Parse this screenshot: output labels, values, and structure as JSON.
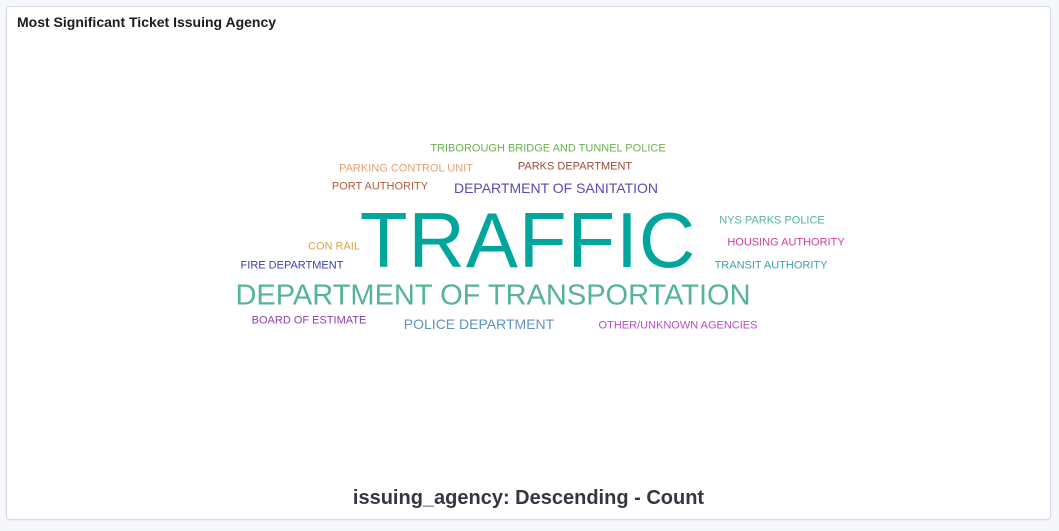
{
  "panel": {
    "title": "Most Significant Ticket Issuing Agency"
  },
  "chart_data": {
    "type": "wordcloud",
    "title": "Most Significant Ticket Issuing Agency",
    "xlabel": "issuing_agency: Descending - Count",
    "words": [
      {
        "text": "TRAFFIC",
        "weight": 100,
        "color": "#00a69b"
      },
      {
        "text": "DEPARTMENT OF TRANSPORTATION",
        "weight": 40,
        "color": "#54b399"
      },
      {
        "text": "DEPARTMENT OF SANITATION",
        "weight": 14,
        "color": "#5a4ab3"
      },
      {
        "text": "POLICE DEPARTMENT",
        "weight": 14,
        "color": "#6092c0"
      },
      {
        "text": "TRIBOROUGH BRIDGE AND TUNNEL POLICE",
        "weight": 10,
        "color": "#68b34e"
      },
      {
        "text": "PARKING CONTROL UNIT",
        "weight": 10,
        "color": "#e7a06e"
      },
      {
        "text": "PARKS DEPARTMENT",
        "weight": 10,
        "color": "#9c4a36"
      },
      {
        "text": "PORT AUTHORITY",
        "weight": 10,
        "color": "#b55838"
      },
      {
        "text": "NYS PARKS POLICE",
        "weight": 10,
        "color": "#54b399"
      },
      {
        "text": "HOUSING AUTHORITY",
        "weight": 10,
        "color": "#ca3f9b"
      },
      {
        "text": "CON RAIL",
        "weight": 10,
        "color": "#d6a840"
      },
      {
        "text": "FIRE DEPARTMENT",
        "weight": 10,
        "color": "#3b41ab"
      },
      {
        "text": "TRANSIT AUTHORITY",
        "weight": 10,
        "color": "#3ea1a6"
      },
      {
        "text": "BOARD OF ESTIMATE",
        "weight": 10,
        "color": "#8b3eb0"
      },
      {
        "text": "OTHER/UNKNOWN AGENCIES",
        "weight": 10,
        "color": "#b84fc4"
      }
    ]
  }
}
